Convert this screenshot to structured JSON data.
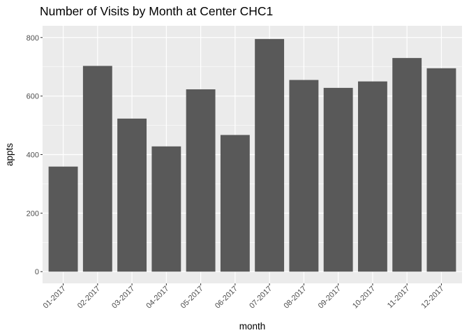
{
  "chart_data": {
    "type": "bar",
    "title": "Number of Visits by Month at Center CHC1",
    "xlabel": "month",
    "ylabel": "appts",
    "categories": [
      "01-2017",
      "02-2017",
      "03-2017",
      "04-2017",
      "05-2017",
      "06-2017",
      "07-2017",
      "08-2017",
      "09-2017",
      "10-2017",
      "11-2017",
      "12-2017"
    ],
    "values": [
      359,
      703,
      523,
      428,
      623,
      467,
      795,
      655,
      628,
      650,
      730,
      695
    ],
    "ylim": [
      -40,
      840
    ],
    "yticks": [
      0,
      200,
      400,
      600,
      800
    ],
    "ytick_labels": [
      "0",
      "200",
      "400",
      "600",
      "800"
    ],
    "grid": true,
    "bar_color": "#595959",
    "panel_color": "#ebebeb",
    "grid_color": "#ffffff"
  }
}
